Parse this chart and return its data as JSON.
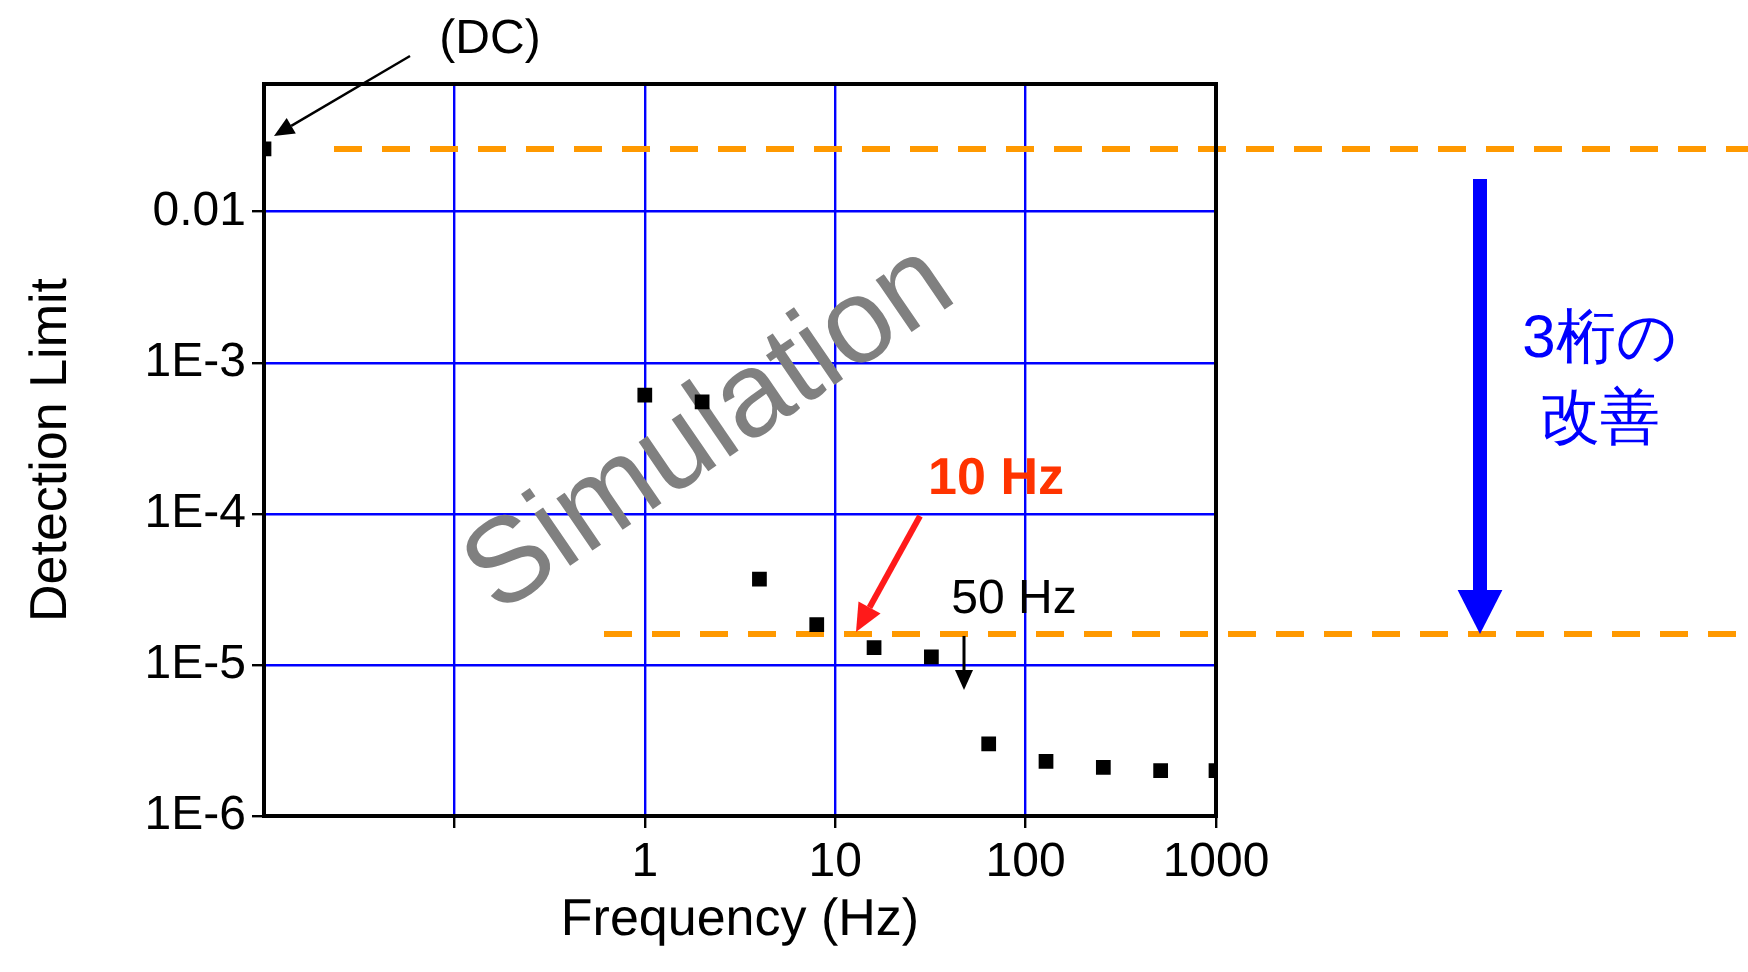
{
  "chart_data": {
    "type": "scatter",
    "xlabel": "Frequency (Hz)",
    "ylabel": "Detection Limit",
    "log": "xy",
    "grid": true,
    "legend": false,
    "marker": "square",
    "xlim": [
      0.01,
      1000
    ],
    "ylim": [
      1e-06,
      0.07
    ],
    "xticks": [
      {
        "value": 0.1,
        "label": null
      },
      1,
      10,
      100,
      1000
    ],
    "yticks": [
      {
        "value": 1e-06,
        "label": "1E-6"
      },
      {
        "value": 1e-05,
        "label": "1E-5"
      },
      {
        "value": 0.0001,
        "label": "1E-4"
      },
      {
        "value": 0.001,
        "label": "1E-3"
      },
      0.01
    ],
    "series": [
      {
        "color": "#000000",
        "x": [
          0.01,
          1,
          2,
          4,
          8,
          16,
          32,
          64,
          128,
          256,
          512,
          1000
        ],
        "values": [
          0.026,
          0.00061,
          0.00055,
          3.7e-05,
          1.85e-05,
          1.3e-05,
          1.13e-05,
          3e-06,
          2.3e-06,
          2.1e-06,
          2e-06,
          2e-06
        ]
      }
    ],
    "ref_lines": [
      {
        "axis": "y",
        "value": 0.026,
        "color": "#ff9900",
        "line_style": "dashed"
      },
      {
        "axis": "y",
        "value": 1.6e-05,
        "color": "#ff9900",
        "line_style": "dashed"
      }
    ],
    "annotations": [
      "(DC)",
      "10 Hz",
      "50 Hz",
      "3桁の改善",
      "Simulation"
    ]
  }
}
